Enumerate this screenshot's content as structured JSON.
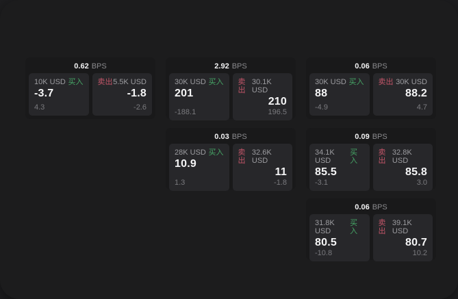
{
  "labels": {
    "bps_unit": "BPS",
    "buy": "买入",
    "sell": "卖出"
  },
  "colors": {
    "outer_bg": "#1f1f21",
    "panel_bg": "#1c1c1d",
    "card_bg": "#19191a",
    "quote_panel_bg": "#27272a",
    "buy_green": "#46a465",
    "sell_red": "#c25568"
  },
  "cards": [
    {
      "bps": "0.62",
      "buy": {
        "size": "10K USD",
        "value": "-3.7",
        "delta": "4.3"
      },
      "sell": {
        "size": "5.5K USD",
        "value": "-1.8",
        "delta": "-2.6"
      }
    },
    {
      "bps": "2.92",
      "buy": {
        "size": "30K USD",
        "value": "201",
        "delta": "-188.1"
      },
      "sell": {
        "size": "30.1K USD",
        "value": "210",
        "delta": "196.5"
      }
    },
    {
      "bps": "0.06",
      "buy": {
        "size": "30K USD",
        "value": "88",
        "delta": "-4.9"
      },
      "sell": {
        "size": "30K USD",
        "value": "88.2",
        "delta": "4.7"
      }
    },
    {
      "bps": "0.03",
      "buy": {
        "size": "28K USD",
        "value": "10.9",
        "delta": "1.3"
      },
      "sell": {
        "size": "32.6K USD",
        "value": "11",
        "delta": "-1.8"
      }
    },
    {
      "bps": "0.09",
      "buy": {
        "size": "34.1K USD",
        "value": "85.5",
        "delta": "-3.1"
      },
      "sell": {
        "size": "32.8K USD",
        "value": "85.8",
        "delta": "3.0"
      }
    },
    {
      "bps": "0.06",
      "buy": {
        "size": "31.8K USD",
        "value": "80.5",
        "delta": "-10.8"
      },
      "sell": {
        "size": "39.1K USD",
        "value": "80.7",
        "delta": "10.2"
      }
    }
  ]
}
